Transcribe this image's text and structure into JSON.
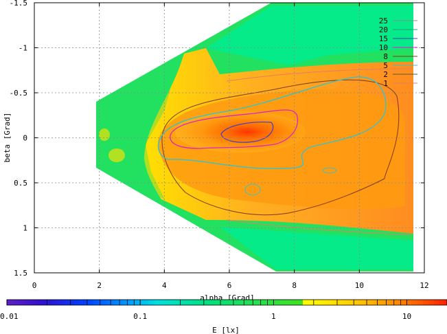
{
  "chart_data": {
    "type": "heatmap",
    "title": "",
    "xlabel": "alpha [Grad]",
    "ylabel": "beta [Grad]",
    "xlim": [
      0,
      12
    ],
    "ylim": [
      1.5,
      -1.5
    ],
    "x_ticks": [
      "0",
      "2",
      "4",
      "6",
      "8",
      "10",
      "12"
    ],
    "y_ticks": [
      "-1.5",
      "-1",
      "-0.5",
      "0",
      "0.5",
      "1",
      "1.5"
    ],
    "grid": true,
    "colorbar": {
      "label": "E [lx]",
      "scale": "log",
      "range": [
        0.01,
        20
      ],
      "tick_labels": [
        "0.01",
        "0.1",
        "1",
        "10"
      ]
    },
    "contour_legend": {
      "placement": "top-right",
      "levels": [
        "25",
        "20",
        "15",
        "10",
        "8",
        "5",
        "2",
        "1"
      ],
      "colors": [
        "#8c8c8c",
        "#20a080",
        "#4040c0",
        "#e020c0",
        "#8a3a10",
        "#40c0c0",
        "#506030",
        "#e08060"
      ]
    },
    "field_samples": [
      {
        "alpha": 2.2,
        "beta": -0.1,
        "E": 1.5
      },
      {
        "alpha": 3.0,
        "beta": 0.5,
        "E": 1.6
      },
      {
        "alpha": 4.0,
        "beta": 0.0,
        "E": 5.0
      },
      {
        "alpha": 5.0,
        "beta": 0.0,
        "E": 8.0
      },
      {
        "alpha": 6.6,
        "beta": 0.05,
        "E": 15.0
      },
      {
        "alpha": 8.0,
        "beta": 0.1,
        "E": 10.0
      },
      {
        "alpha": 9.5,
        "beta": 0.3,
        "E": 7.0
      },
      {
        "alpha": 11.0,
        "beta": 0.4,
        "E": 5.0
      },
      {
        "alpha": 6.0,
        "beta": -1.2,
        "E": 1.5
      },
      {
        "alpha": 6.0,
        "beta": 1.2,
        "E": 1.5
      },
      {
        "alpha": 5.5,
        "beta": -0.8,
        "E": 3.0
      }
    ]
  }
}
